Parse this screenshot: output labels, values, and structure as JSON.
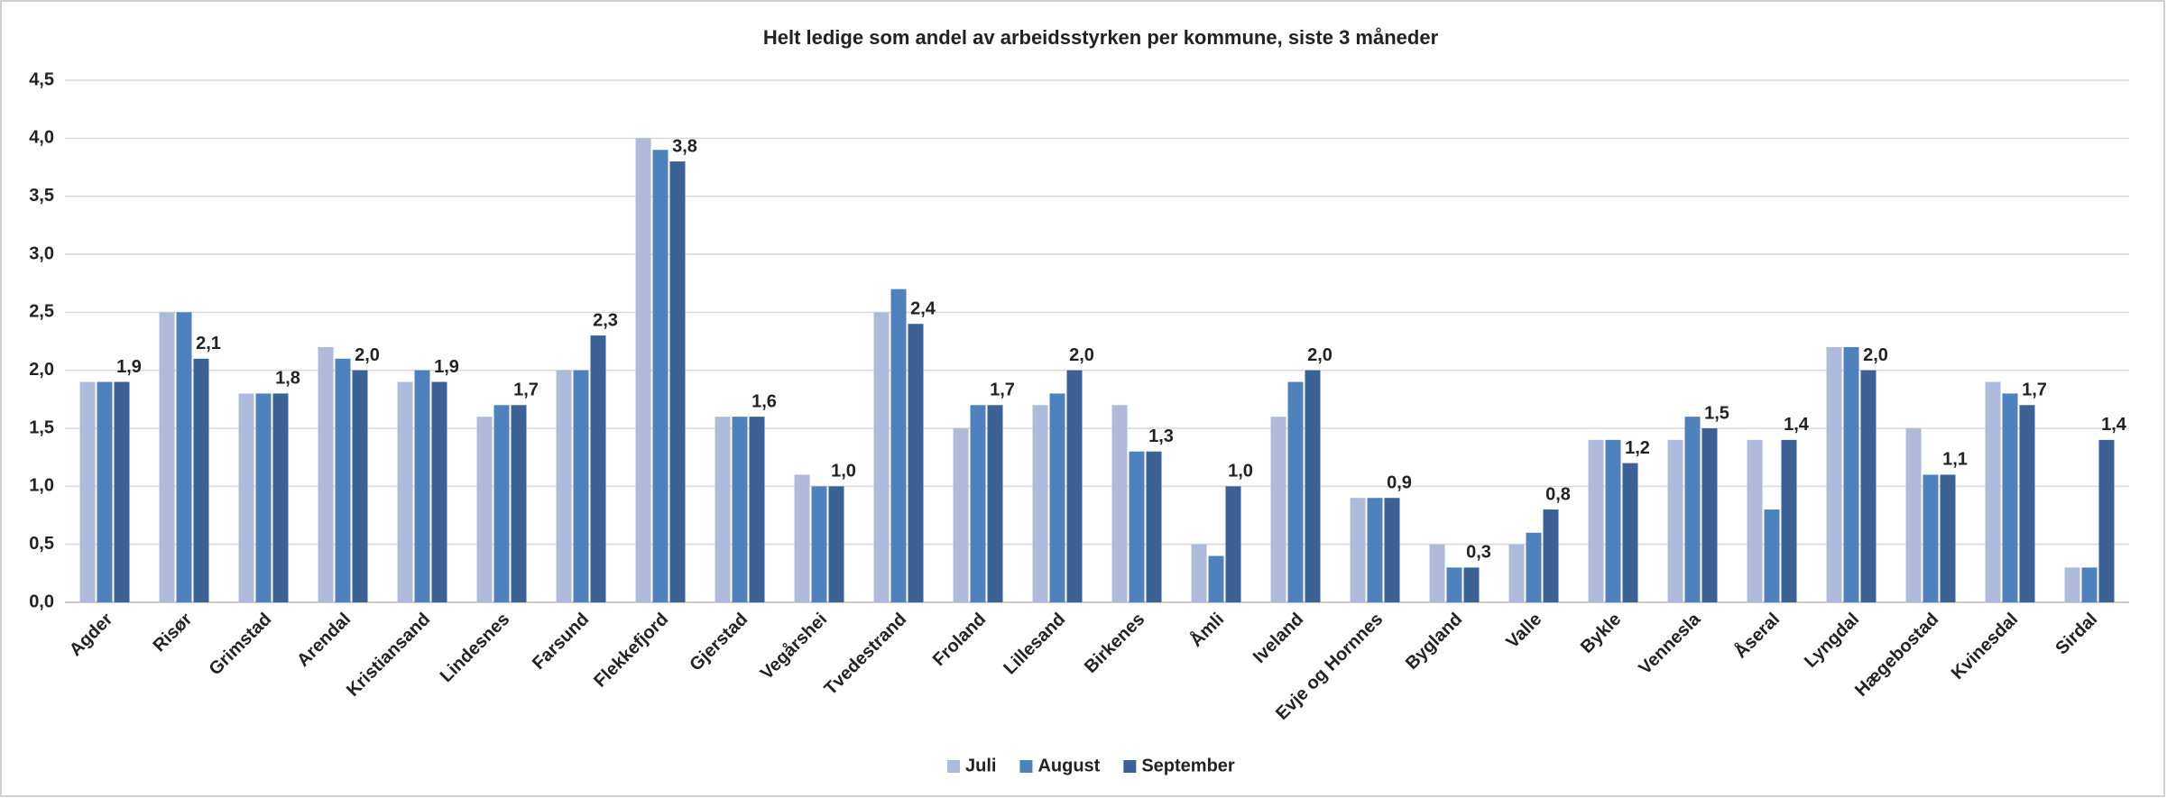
{
  "chart_data": {
    "type": "bar",
    "title": "Helt ledige som andel av arbeidsstyrken per kommune, siste 3 måneder",
    "categories": [
      "Agder",
      "Risør",
      "Grimstad",
      "Arendal",
      "Kristiansand",
      "Lindesnes",
      "Farsund",
      "Flekkefjord",
      "Gjerstad",
      "Vegårshei",
      "Tvedestrand",
      "Froland",
      "Lillesand",
      "Birkenes",
      "Åmli",
      "Iveland",
      "Evje og Hornnes",
      "Bygland",
      "Valle",
      "Bykle",
      "Vennesla",
      "Åseral",
      "Lyngdal",
      "Hægebostad",
      "Kvinesdal",
      "Sirdal"
    ],
    "series": [
      {
        "name": "Juli",
        "color": "#adbad9",
        "values": [
          1.9,
          2.5,
          1.8,
          2.2,
          1.9,
          1.6,
          2.0,
          4.0,
          1.6,
          1.1,
          2.5,
          1.5,
          1.7,
          1.7,
          0.5,
          1.6,
          0.9,
          0.5,
          0.5,
          1.4,
          1.4,
          1.4,
          2.2,
          1.5,
          1.9,
          0.3
        ]
      },
      {
        "name": "August",
        "color": "#4f81bd",
        "values": [
          1.9,
          2.5,
          1.8,
          2.1,
          2.0,
          1.7,
          2.0,
          3.9,
          1.6,
          1.0,
          2.7,
          1.7,
          1.8,
          1.3,
          0.4,
          1.9,
          0.9,
          0.3,
          0.6,
          1.4,
          1.6,
          0.8,
          2.2,
          1.1,
          1.8,
          0.3
        ]
      },
      {
        "name": "September",
        "color": "#3b6197",
        "values": [
          1.9,
          2.1,
          1.8,
          2.0,
          1.9,
          1.7,
          2.3,
          3.8,
          1.6,
          1.0,
          2.4,
          1.7,
          2.0,
          1.3,
          1.0,
          2.0,
          0.9,
          0.3,
          0.8,
          1.2,
          1.5,
          1.4,
          2.0,
          1.1,
          1.7,
          1.4
        ],
        "value_labels": [
          "1,9",
          "2,1",
          "1,8",
          "2,0",
          "1,9",
          "1,7",
          "2,3",
          "3,8",
          "1,6",
          "1,0",
          "2,4",
          "1,7",
          "2,0",
          "1,3",
          "1,0",
          "2,0",
          "0,9",
          "0,3",
          "0,8",
          "1,2",
          "1,5",
          "1,4",
          "2,0",
          "1,1",
          "1,7",
          "1,4"
        ]
      }
    ],
    "ylim": [
      0,
      4.5
    ],
    "yticks": [
      {
        "value": 0,
        "label": "0,0"
      },
      {
        "value": 0.5,
        "label": "0,5"
      },
      {
        "value": 1,
        "label": "1,0"
      },
      {
        "value": 1.5,
        "label": "1,5"
      },
      {
        "value": 2,
        "label": "2,0"
      },
      {
        "value": 2.5,
        "label": "2,5"
      },
      {
        "value": 3,
        "label": "3,0"
      },
      {
        "value": 3.5,
        "label": "3,5"
      },
      {
        "value": 4,
        "label": "4,0"
      },
      {
        "value": 4.5,
        "label": "4,5"
      }
    ],
    "grid": true,
    "legend": "bottom"
  }
}
